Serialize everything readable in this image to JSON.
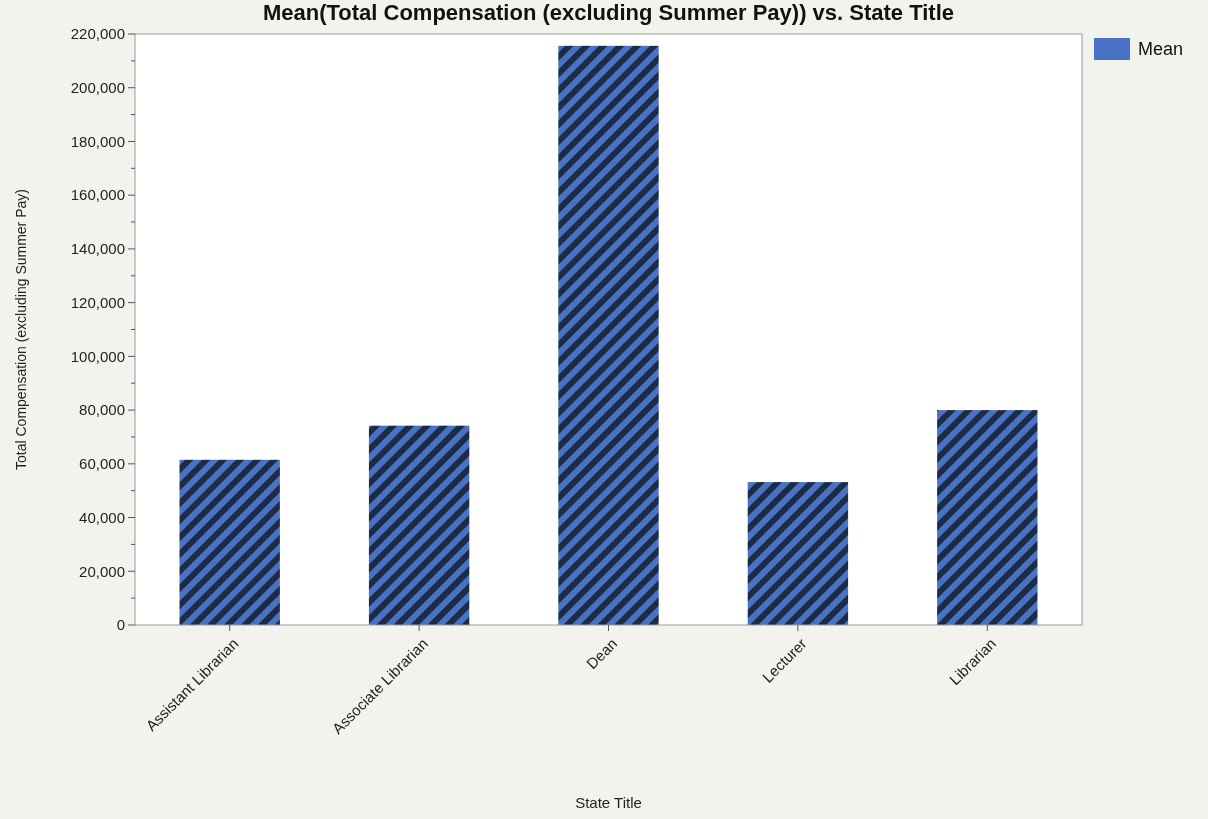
{
  "chart_data": {
    "type": "bar",
    "title": "Mean(Total Compensation (excluding Summer Pay)) vs. State Title",
    "xlabel": "State Title",
    "ylabel": "Total Compensation (excluding Summer Pay)",
    "categories": [
      "Assistant Librarian",
      "Associate Librarian",
      "Dean",
      "Lecturer",
      "Librarian"
    ],
    "series": [
      {
        "name": "Mean",
        "color": "#4a72c4",
        "values": [
          61500,
          74200,
          215600,
          53200,
          80000
        ]
      }
    ],
    "ylim": [
      0,
      220000
    ],
    "yticks": [
      {
        "value": 0,
        "label": "0"
      },
      {
        "value": 10000,
        "label": null
      },
      {
        "value": 20000,
        "label": "20,000"
      },
      {
        "value": 30000,
        "label": null
      },
      {
        "value": 40000,
        "label": "40,000"
      },
      {
        "value": 50000,
        "label": null
      },
      {
        "value": 60000,
        "label": "60,000"
      },
      {
        "value": 70000,
        "label": null
      },
      {
        "value": 80000,
        "label": "80,000"
      },
      {
        "value": 90000,
        "label": null
      },
      {
        "value": 100000,
        "label": "100,000"
      },
      {
        "value": 110000,
        "label": null
      },
      {
        "value": 120000,
        "label": "120,000"
      },
      {
        "value": 130000,
        "label": null
      },
      {
        "value": 140000,
        "label": "140,000"
      },
      {
        "value": 150000,
        "label": null
      },
      {
        "value": 160000,
        "label": "160,000"
      },
      {
        "value": 170000,
        "label": null
      },
      {
        "value": 180000,
        "label": "180,000"
      },
      {
        "value": 190000,
        "label": null
      },
      {
        "value": 200000,
        "label": "200,000"
      },
      {
        "value": 210000,
        "label": null
      },
      {
        "value": 220000,
        "label": "220,000"
      }
    ],
    "legend": "top right",
    "grid": false
  }
}
